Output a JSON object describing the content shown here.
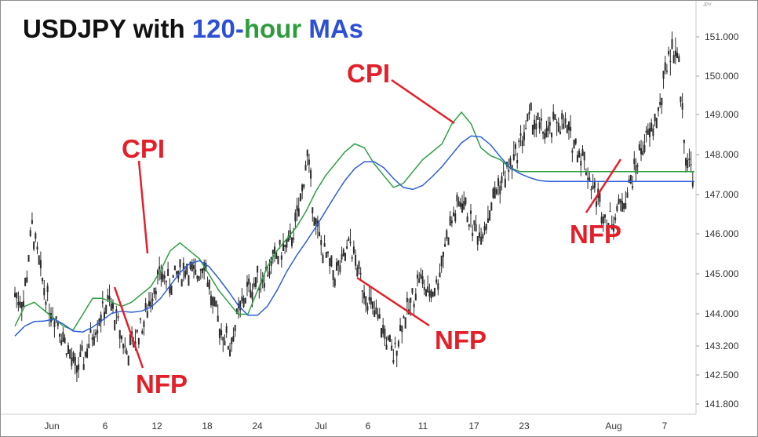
{
  "colors": {
    "candle": "#2a2a2a",
    "ma_green": "#2ea043",
    "ma_blue": "#2d5fdb",
    "annotation": "#e3202a",
    "title_black": "#111111",
    "title_blue": "#2d4fd6",
    "title_green": "#2e9c3e",
    "grid": "#ebebeb"
  },
  "chart_data": {
    "type": "line",
    "title_parts": [
      "USDJPY with ",
      "120-",
      "hour ",
      "MAs"
    ],
    "axis_code": "JPY",
    "ylim": [
      141.5,
      151.6
    ],
    "y_ticks": [
      "151.000",
      "150.000",
      "149.000",
      "148.000",
      "147.000",
      "146.000",
      "145.000",
      "144.000",
      "143.200",
      "142.500",
      "141.800"
    ],
    "x_ticks": [
      "Jun",
      "6",
      "12",
      "18",
      "24",
      "Jul",
      "6",
      "11",
      "17",
      "23",
      "Aug",
      "7"
    ],
    "grid": false,
    "legend": "none",
    "series": [
      {
        "kind": "price",
        "x": [
          0,
          1,
          2,
          3,
          4,
          5,
          6,
          7,
          8,
          9,
          10,
          11,
          12,
          13,
          14,
          15,
          16,
          17,
          18,
          19,
          20,
          21,
          22,
          23,
          24,
          25,
          26,
          27,
          28,
          29,
          30,
          31,
          32,
          33,
          34,
          35,
          36,
          37,
          38,
          39,
          40,
          41,
          42,
          43,
          44,
          45,
          46,
          47,
          48,
          49,
          50,
          51,
          52,
          53,
          54,
          55,
          56,
          57,
          58,
          59,
          60,
          61,
          62,
          63,
          64,
          65,
          66,
          67,
          68,
          69,
          70,
          71,
          72,
          73,
          74,
          75,
          76,
          77,
          78,
          79
        ],
        "values": [
          144.5,
          144.3,
          146.2,
          145.0,
          144.2,
          143.8,
          143.2,
          142.6,
          142.9,
          143.5,
          144.0,
          144.3,
          143.7,
          143.0,
          143.4,
          143.8,
          144.6,
          145.0,
          144.8,
          145.0,
          145.2,
          144.9,
          145.4,
          144.2,
          143.6,
          143.2,
          144.0,
          144.6,
          144.8,
          145.0,
          145.3,
          145.6,
          145.8,
          146.6,
          148.0,
          146.2,
          145.5,
          145.0,
          145.2,
          145.8,
          145.0,
          144.4,
          143.9,
          143.5,
          142.9,
          143.8,
          144.2,
          145.0,
          144.5,
          144.7,
          145.8,
          146.5,
          146.9,
          146.3,
          146.0,
          146.5,
          147.2,
          147.5,
          147.9,
          148.5,
          149.0,
          148.7,
          148.5,
          148.9,
          148.7,
          148.3,
          148.0,
          147.3,
          146.8,
          146.3,
          146.6,
          147.0,
          147.6,
          148.3,
          148.6,
          149.2,
          150.6,
          150.7,
          148.0,
          147.5
        ]
      },
      {
        "name": "120-hour MA (green)",
        "x": [
          0,
          3,
          6,
          9,
          12,
          15,
          18,
          21,
          24,
          27,
          30,
          33,
          36,
          39,
          42,
          45,
          48,
          51,
          54,
          57,
          60,
          63,
          66,
          69,
          72,
          75,
          76,
          78,
          81,
          84,
          87,
          90,
          93,
          96,
          99,
          102,
          105,
          108,
          111,
          114,
          117,
          120,
          123,
          126,
          129,
          132,
          135,
          138,
          141,
          144,
          147,
          150,
          153,
          156,
          159,
          162,
          165,
          168,
          171,
          174,
          177,
          180,
          183,
          186,
          189,
          192,
          195,
          198,
          201,
          204,
          207
        ],
        "values": [
          143.7,
          144.2,
          144.3,
          144.1,
          143.9,
          143.7,
          143.6,
          144.0,
          144.4,
          144.4,
          144.3,
          144.2,
          144.3,
          144.5,
          144.7,
          145.1,
          145.6,
          145.8,
          145.6,
          145.4,
          145.0,
          144.6,
          144.3,
          144.0,
          144.0,
          144.6,
          145.2,
          145.6,
          145.9,
          146.2,
          146.6,
          147.1,
          147.5,
          147.8,
          148.1,
          148.3,
          148.2,
          147.8,
          147.5,
          147.2,
          147.3,
          147.6,
          147.9,
          148.1,
          148.3,
          148.8,
          149.1,
          148.8,
          148.2,
          148.0,
          147.9,
          147.7,
          147.6,
          147.6,
          147.6,
          147.6,
          147.6,
          147.6,
          147.6,
          147.6,
          147.6,
          147.6,
          147.6,
          147.6,
          147.6,
          147.6,
          147.6,
          147.6,
          147.6,
          147.6,
          147.6
        ]
      }
    ],
    "annotations": [
      "CPI",
      "CPI",
      "NFP",
      "NFP",
      "NFP"
    ]
  }
}
